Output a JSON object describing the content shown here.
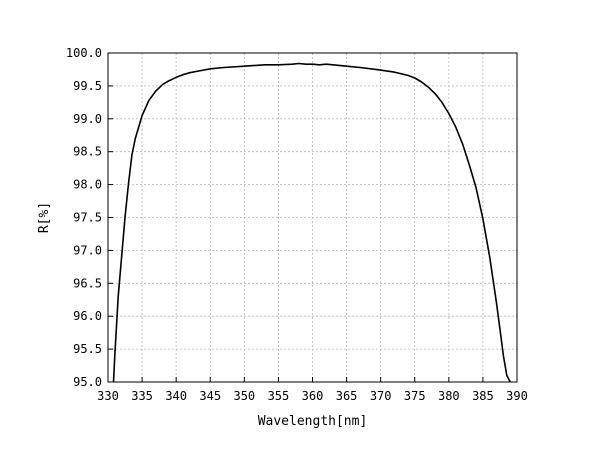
{
  "chart_data": {
    "type": "line",
    "xlabel": "Wavelength[nm]",
    "ylabel": "R[%]",
    "xlim": [
      330,
      390
    ],
    "ylim": [
      95.0,
      100.0
    ],
    "x_ticks": [
      330,
      335,
      340,
      345,
      350,
      355,
      360,
      365,
      370,
      375,
      380,
      385,
      390
    ],
    "x_tick_labels": [
      "330",
      "335",
      "340",
      "345",
      "350",
      "355",
      "360",
      "365",
      "370",
      "375",
      "380",
      "385",
      "390"
    ],
    "y_ticks": [
      95.0,
      95.5,
      96.0,
      96.5,
      97.0,
      97.5,
      98.0,
      98.5,
      99.0,
      99.5,
      100.0
    ],
    "y_tick_labels": [
      "95.0",
      "95.5",
      "96.0",
      "96.5",
      "97.0",
      "97.5",
      "98.0",
      "98.5",
      "99.0",
      "99.5",
      "100.0"
    ],
    "grid": true,
    "legend": "none",
    "series": [
      {
        "color": "#000000",
        "x": [
          330.8,
          331.0,
          331.5,
          332.0,
          332.5,
          333.0,
          333.5,
          334.0,
          335.0,
          336.0,
          337.0,
          338.0,
          339.0,
          340.0,
          341.0,
          342.0,
          343.0,
          344.0,
          345.0,
          347.0,
          350.0,
          353.0,
          355.0,
          357.0,
          358.0,
          359.0,
          360.0,
          361.0,
          362.0,
          363.0,
          365.0,
          367.0,
          370.0,
          372.0,
          374.0,
          375.0,
          376.0,
          377.0,
          378.0,
          379.0,
          380.0,
          381.0,
          382.0,
          383.0,
          384.0,
          385.0,
          386.0,
          387.0,
          387.5,
          388.0,
          388.5,
          389.0
        ],
        "y": [
          95.0,
          95.4,
          96.3,
          96.9,
          97.5,
          98.0,
          98.45,
          98.7,
          99.05,
          99.28,
          99.42,
          99.52,
          99.58,
          99.63,
          99.67,
          99.7,
          99.72,
          99.74,
          99.76,
          99.78,
          99.8,
          99.82,
          99.82,
          99.83,
          99.84,
          99.83,
          99.83,
          99.82,
          99.83,
          99.82,
          99.8,
          99.78,
          99.74,
          99.71,
          99.66,
          99.62,
          99.56,
          99.48,
          99.38,
          99.25,
          99.08,
          98.88,
          98.62,
          98.3,
          97.95,
          97.48,
          96.9,
          96.2,
          95.8,
          95.4,
          95.1,
          95.0
        ]
      }
    ]
  }
}
